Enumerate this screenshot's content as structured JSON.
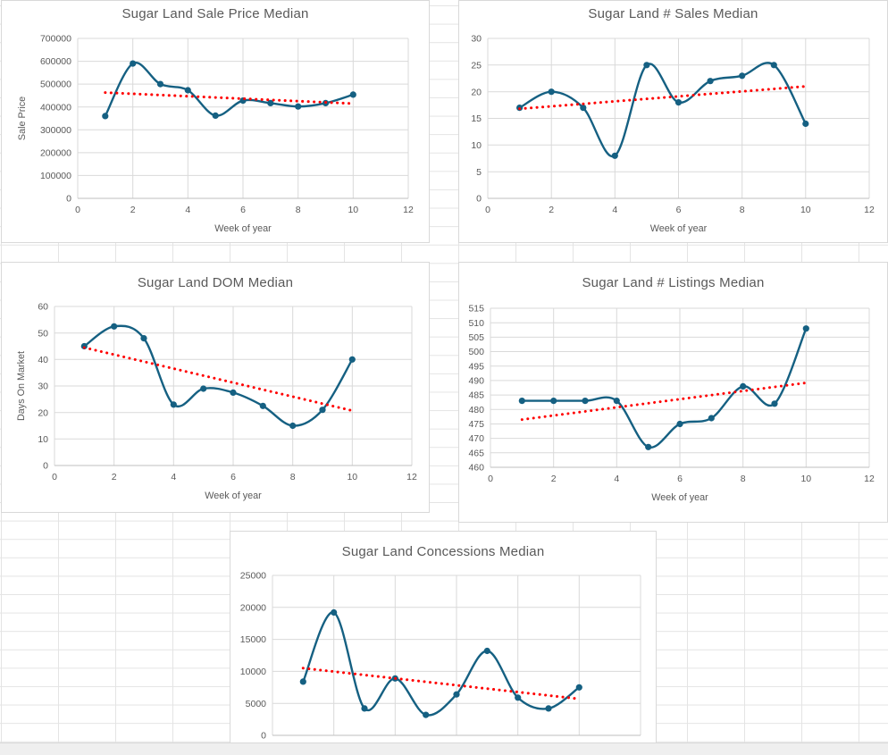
{
  "colors": {
    "series_line": "#156082",
    "trendline": "#FF0000",
    "gridline": "#D9D9D9",
    "axis_line": "#BFBFBF",
    "text": "#595959"
  },
  "chart_data": [
    {
      "type": "line",
      "title": "Sugar Land Sale Price Median",
      "xlabel": "Week of year",
      "ylabel": "Sale Price",
      "x": [
        1,
        2,
        3,
        4,
        5,
        6,
        7,
        8,
        9,
        10
      ],
      "series": [
        {
          "name": "weekly median",
          "values": [
            360000,
            590000,
            500000,
            473000,
            362000,
            428000,
            417000,
            402000,
            417000,
            454000
          ]
        },
        {
          "name": "linear trend",
          "trend_start": 463000,
          "trend_end": 415000,
          "x_range": [
            1,
            10
          ]
        }
      ],
      "xlim": [
        0,
        12
      ],
      "xticks": [
        0,
        2,
        4,
        6,
        8,
        10,
        12
      ],
      "ylim": [
        0,
        700000
      ],
      "ytick_step": 100000,
      "grid": true,
      "legend": "none",
      "x_tick_labels_visible": true
    },
    {
      "type": "line",
      "title": "Sugar Land # Sales Median",
      "xlabel": "Week of year",
      "ylabel": null,
      "x": [
        1,
        2,
        3,
        4,
        5,
        6,
        7,
        8,
        9,
        10
      ],
      "series": [
        {
          "name": "weekly median",
          "values": [
            17,
            20,
            17,
            8,
            25,
            18,
            22,
            23,
            25,
            14
          ]
        },
        {
          "name": "linear trend",
          "trend_start": 16.8,
          "trend_end": 21.0,
          "x_range": [
            1,
            10
          ]
        }
      ],
      "xlim": [
        0,
        12
      ],
      "xticks": [
        0,
        2,
        4,
        6,
        8,
        10,
        12
      ],
      "ylim": [
        0,
        30
      ],
      "ytick_step": 5,
      "grid": true,
      "legend": "none",
      "x_tick_labels_visible": true
    },
    {
      "type": "line",
      "title": "Sugar Land DOM Median",
      "xlabel": "Week of year",
      "ylabel": "Days On Market",
      "x": [
        1,
        2,
        3,
        4,
        5,
        6,
        7,
        8,
        9,
        10
      ],
      "series": [
        {
          "name": "weekly median",
          "values": [
            45,
            52.5,
            48,
            23,
            29,
            27.5,
            22.5,
            15,
            21,
            40
          ]
        },
        {
          "name": "linear trend",
          "trend_start": 44.5,
          "trend_end": 20.7,
          "x_range": [
            1,
            10
          ]
        }
      ],
      "xlim": [
        0,
        12
      ],
      "xticks": [
        0,
        2,
        4,
        6,
        8,
        10,
        12
      ],
      "ylim": [
        0,
        60
      ],
      "ytick_step": 10,
      "grid": true,
      "legend": "none",
      "x_tick_labels_visible": true
    },
    {
      "type": "line",
      "title": "Sugar Land # Listings Median",
      "xlabel": "Week of year",
      "ylabel": null,
      "x": [
        1,
        2,
        3,
        4,
        5,
        6,
        7,
        8,
        9,
        10
      ],
      "series": [
        {
          "name": "weekly median",
          "values": [
            483,
            483,
            483,
            483,
            467,
            475,
            477,
            488,
            482,
            508
          ]
        },
        {
          "name": "linear trend",
          "trend_start": 476.5,
          "trend_end": 489.2,
          "x_range": [
            1,
            10
          ]
        }
      ],
      "xlim": [
        0,
        12
      ],
      "xticks": [
        0,
        2,
        4,
        6,
        8,
        10,
        12
      ],
      "ylim": [
        460,
        515
      ],
      "ytick_step": 5,
      "grid": true,
      "legend": "none",
      "x_tick_labels_visible": true
    },
    {
      "type": "line",
      "title": "Sugar Land Concessions Median",
      "xlabel": null,
      "ylabel": null,
      "x": [
        1,
        2,
        3,
        4,
        5,
        6,
        7,
        8,
        9,
        10
      ],
      "series": [
        {
          "name": "weekly median",
          "values": [
            8400,
            19200,
            4200,
            8900,
            3200,
            6400,
            13200,
            5900,
            4200,
            7500
          ]
        },
        {
          "name": "linear trend",
          "trend_start": 10500,
          "trend_end": 5700,
          "x_range": [
            1,
            10
          ]
        }
      ],
      "xlim": [
        0,
        12
      ],
      "xticks": [
        0,
        2,
        4,
        6,
        8,
        10,
        12
      ],
      "ylim": [
        0,
        25000
      ],
      "ytick_step": 5000,
      "grid": true,
      "legend": "none",
      "x_tick_labels_visible": false
    }
  ]
}
